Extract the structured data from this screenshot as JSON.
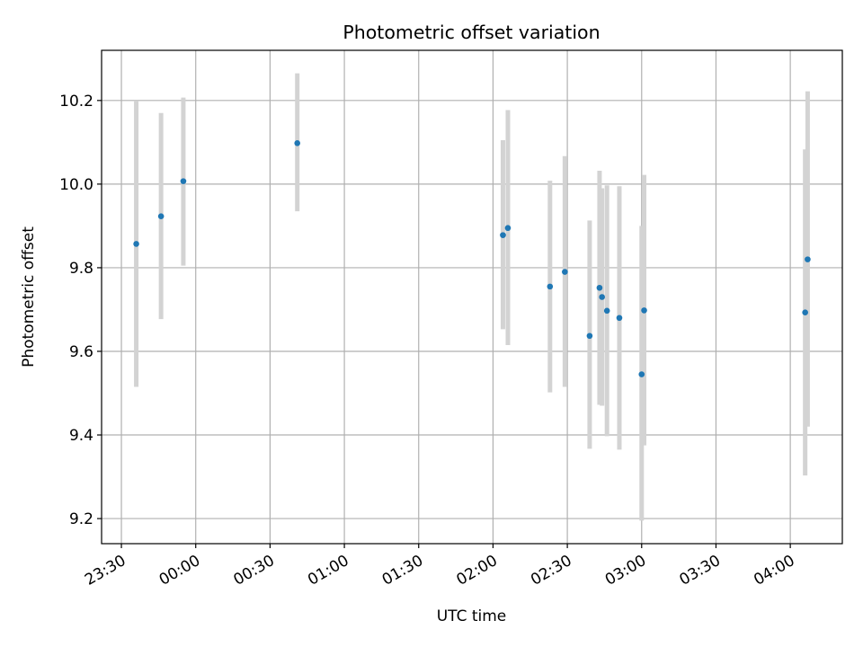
{
  "chart_data": {
    "type": "scatter",
    "title": "Photometric offset variation",
    "xlabel": "UTC time",
    "ylabel": "Photometric offset",
    "grid": true,
    "xlim": [
      "23:22",
      "04:21"
    ],
    "ylim": [
      9.14,
      10.32
    ],
    "x_ticks": [
      "23:30",
      "00:00",
      "00:30",
      "01:00",
      "01:30",
      "02:00",
      "02:30",
      "03:00",
      "03:30",
      "04:00"
    ],
    "y_ticks": [
      "9.2",
      "9.4",
      "9.6",
      "9.8",
      "10.0",
      "10.2"
    ],
    "colors": {
      "point": "#1f77b4",
      "errorbar": "#d3d3d3",
      "grid": "#b0b0b0"
    },
    "points": [
      {
        "x": "23:36",
        "y": 9.857,
        "low": 9.515,
        "high": 10.2
      },
      {
        "x": "23:46",
        "y": 9.923,
        "low": 9.677,
        "high": 10.17
      },
      {
        "x": "23:55",
        "y": 10.007,
        "low": 9.805,
        "high": 10.207
      },
      {
        "x": "00:41",
        "y": 10.098,
        "low": 9.935,
        "high": 10.265
      },
      {
        "x": "02:04",
        "y": 9.878,
        "low": 9.653,
        "high": 10.105
      },
      {
        "x": "02:06",
        "y": 9.895,
        "low": 9.615,
        "high": 10.177
      },
      {
        "x": "02:23",
        "y": 9.755,
        "low": 9.502,
        "high": 10.008
      },
      {
        "x": "02:29",
        "y": 9.79,
        "low": 9.515,
        "high": 10.067
      },
      {
        "x": "02:39",
        "y": 9.637,
        "low": 9.367,
        "high": 9.913
      },
      {
        "x": "02:43",
        "y": 9.752,
        "low": 9.472,
        "high": 10.032
      },
      {
        "x": "02:44",
        "y": 9.73,
        "low": 9.47,
        "high": 9.99
      },
      {
        "x": "02:46",
        "y": 9.697,
        "low": 9.397,
        "high": 9.997
      },
      {
        "x": "02:51",
        "y": 9.68,
        "low": 9.365,
        "high": 9.995
      },
      {
        "x": "03:00",
        "y": 9.545,
        "low": 9.195,
        "high": 9.9
      },
      {
        "x": "03:01",
        "y": 9.698,
        "low": 9.375,
        "high": 10.022
      },
      {
        "x": "04:06",
        "y": 9.693,
        "low": 9.303,
        "high": 10.083
      },
      {
        "x": "04:07",
        "y": 9.82,
        "low": 9.42,
        "high": 10.222
      }
    ]
  }
}
